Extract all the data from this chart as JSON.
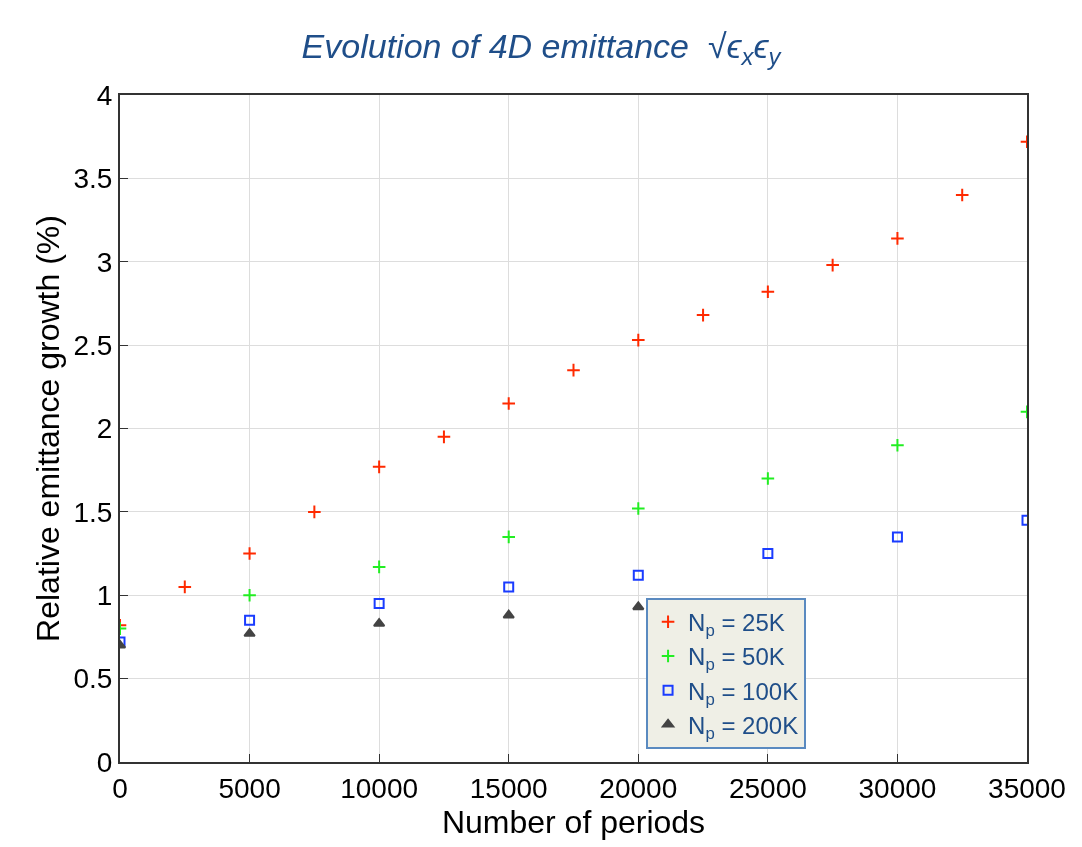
{
  "chart_data": {
    "type": "scatter",
    "title": "Evolution of 4D emittance  √ϵ$_{x}$ϵ$_{y}$",
    "xlabel": "Number of periods",
    "ylabel": "Relative emittance growth (%)",
    "xlim": [
      0,
      35000
    ],
    "xticks": [
      0,
      5000,
      10000,
      15000,
      20000,
      25000,
      30000,
      35000
    ],
    "ylim": [
      0,
      4
    ],
    "yticks": [
      0,
      0.5,
      1,
      1.5,
      2,
      2.5,
      3,
      3.5,
      4
    ],
    "grid": true,
    "legend": "bottom right",
    "series": [
      {
        "name": "N$_{p}$ = 25K",
        "color": "#ff2a00",
        "marker": "cross",
        "x": [
          0,
          2500,
          5000,
          7500,
          10000,
          12500,
          15000,
          17500,
          20000,
          22500,
          25000,
          27500,
          30000,
          32500,
          35000
        ],
        "values": [
          0.82,
          1.05,
          1.25,
          1.5,
          1.77,
          1.95,
          2.15,
          2.35,
          2.53,
          2.68,
          2.82,
          2.98,
          3.14,
          3.4,
          3.72
        ]
      },
      {
        "name": "N$_{p}$ = 50K",
        "color": "#22ee22",
        "marker": "cross",
        "x": [
          0,
          5000,
          10000,
          15000,
          20000,
          25000,
          30000,
          35000
        ],
        "values": [
          0.8,
          1.0,
          1.17,
          1.35,
          1.52,
          1.7,
          1.9,
          2.1
        ]
      },
      {
        "name": "N$_{p}$ = 100K",
        "color": "#1a3cff",
        "marker": "square",
        "x": [
          0,
          5000,
          10000,
          15000,
          20000,
          25000,
          30000,
          35000
        ],
        "values": [
          0.72,
          0.85,
          0.95,
          1.05,
          1.12,
          1.25,
          1.35,
          1.45
        ]
      },
      {
        "name": "N$_{p}$ = 200K",
        "color": "#444444",
        "marker": "triangle",
        "x": [
          0,
          5000,
          10000,
          15000,
          20000
        ],
        "values": [
          0.7,
          0.77,
          0.83,
          0.88,
          0.93
        ]
      }
    ]
  }
}
